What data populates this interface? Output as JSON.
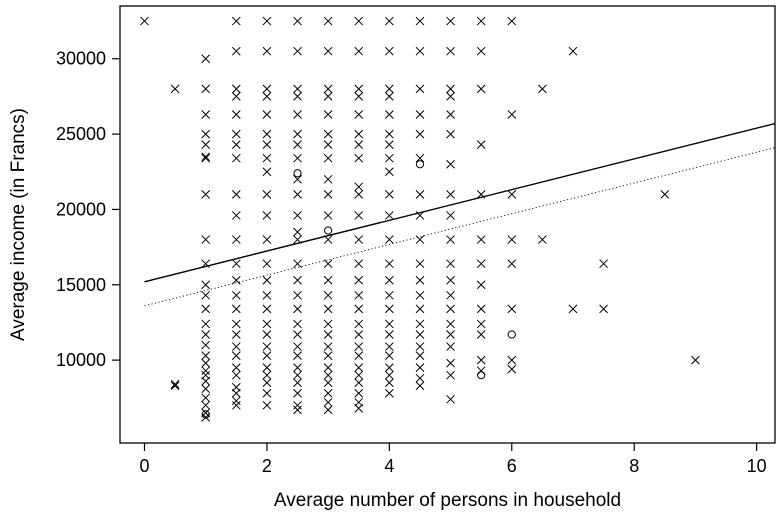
{
  "chart_data": {
    "type": "scatter",
    "title": "",
    "xlabel": "Average number of persons in household",
    "ylabel": "Average income (in Francs)",
    "xlim": [
      -0.4,
      10.3
    ],
    "ylim": [
      4500,
      33500
    ],
    "xticks": [
      0,
      2,
      4,
      6,
      8,
      10
    ],
    "yticks": [
      10000,
      15000,
      20000,
      25000,
      30000
    ],
    "grid": false,
    "legend": "none",
    "series": [
      {
        "marker": "cross",
        "points": [
          [
            0,
            32500
          ],
          [
            0.5,
            28000
          ],
          [
            0.5,
            8300
          ],
          [
            0.5,
            8400
          ],
          [
            1,
            30000
          ],
          [
            1,
            28000
          ],
          [
            1,
            26300
          ],
          [
            1,
            25000
          ],
          [
            1,
            24300
          ],
          [
            1,
            23500
          ],
          [
            1,
            23400
          ],
          [
            1,
            21000
          ],
          [
            1,
            18000
          ],
          [
            1,
            16400
          ],
          [
            1,
            15000
          ],
          [
            1,
            14300
          ],
          [
            1,
            13400
          ],
          [
            1,
            12400
          ],
          [
            1,
            11700
          ],
          [
            1,
            11000
          ],
          [
            1,
            10300
          ],
          [
            1,
            9800
          ],
          [
            1,
            9300
          ],
          [
            1,
            9000
          ],
          [
            1,
            8600
          ],
          [
            1,
            8100
          ],
          [
            1,
            7500
          ],
          [
            1,
            7000
          ],
          [
            1,
            6500
          ],
          [
            1,
            6200
          ],
          [
            1.5,
            32500
          ],
          [
            1.5,
            30500
          ],
          [
            1.5,
            28000
          ],
          [
            1.5,
            27500
          ],
          [
            1.5,
            26300
          ],
          [
            1.5,
            25000
          ],
          [
            1.5,
            24300
          ],
          [
            1.5,
            23400
          ],
          [
            1.5,
            21000
          ],
          [
            1.5,
            19600
          ],
          [
            1.5,
            18000
          ],
          [
            1.5,
            16400
          ],
          [
            1.5,
            15300
          ],
          [
            1.5,
            14300
          ],
          [
            1.5,
            13400
          ],
          [
            1.5,
            12400
          ],
          [
            1.5,
            11700
          ],
          [
            1.5,
            10900
          ],
          [
            1.5,
            10300
          ],
          [
            1.5,
            9500
          ],
          [
            1.5,
            9000
          ],
          [
            1.5,
            8200
          ],
          [
            1.5,
            7800
          ],
          [
            1.5,
            7300
          ],
          [
            1.5,
            7000
          ],
          [
            2,
            32500
          ],
          [
            2,
            30500
          ],
          [
            2,
            28000
          ],
          [
            2,
            27500
          ],
          [
            2,
            26300
          ],
          [
            2,
            25000
          ],
          [
            2,
            24300
          ],
          [
            2,
            23400
          ],
          [
            2,
            22500
          ],
          [
            2,
            21000
          ],
          [
            2,
            19600
          ],
          [
            2,
            18000
          ],
          [
            2,
            16400
          ],
          [
            2,
            15300
          ],
          [
            2,
            14300
          ],
          [
            2,
            13400
          ],
          [
            2,
            12400
          ],
          [
            2,
            11700
          ],
          [
            2,
            10900
          ],
          [
            2,
            10300
          ],
          [
            2,
            9500
          ],
          [
            2,
            9000
          ],
          [
            2,
            8500
          ],
          [
            2,
            7800
          ],
          [
            2,
            7000
          ],
          [
            2.5,
            32500
          ],
          [
            2.5,
            30500
          ],
          [
            2.5,
            28000
          ],
          [
            2.5,
            27500
          ],
          [
            2.5,
            26300
          ],
          [
            2.5,
            25000
          ],
          [
            2.5,
            24300
          ],
          [
            2.5,
            23400
          ],
          [
            2.5,
            22000
          ],
          [
            2.5,
            21000
          ],
          [
            2.5,
            19600
          ],
          [
            2.5,
            18500
          ],
          [
            2.5,
            18000
          ],
          [
            2.5,
            16400
          ],
          [
            2.5,
            15300
          ],
          [
            2.5,
            14300
          ],
          [
            2.5,
            13400
          ],
          [
            2.5,
            12400
          ],
          [
            2.5,
            11700
          ],
          [
            2.5,
            10900
          ],
          [
            2.5,
            10300
          ],
          [
            2.5,
            9500
          ],
          [
            2.5,
            9000
          ],
          [
            2.5,
            8500
          ],
          [
            2.5,
            7800
          ],
          [
            2.5,
            7000
          ],
          [
            2.5,
            6700
          ],
          [
            3,
            32500
          ],
          [
            3,
            30500
          ],
          [
            3,
            28000
          ],
          [
            3,
            27500
          ],
          [
            3,
            26300
          ],
          [
            3,
            25000
          ],
          [
            3,
            24300
          ],
          [
            3,
            23400
          ],
          [
            3,
            22000
          ],
          [
            3,
            21000
          ],
          [
            3,
            19600
          ],
          [
            3,
            18000
          ],
          [
            3,
            16400
          ],
          [
            3,
            15300
          ],
          [
            3,
            14300
          ],
          [
            3,
            13400
          ],
          [
            3,
            12400
          ],
          [
            3,
            11700
          ],
          [
            3,
            10900
          ],
          [
            3,
            10300
          ],
          [
            3,
            9500
          ],
          [
            3,
            9000
          ],
          [
            3,
            8500
          ],
          [
            3,
            7800
          ],
          [
            3,
            7200
          ],
          [
            3,
            6700
          ],
          [
            3.5,
            32500
          ],
          [
            3.5,
            30500
          ],
          [
            3.5,
            28000
          ],
          [
            3.5,
            27500
          ],
          [
            3.5,
            26300
          ],
          [
            3.5,
            25000
          ],
          [
            3.5,
            24300
          ],
          [
            3.5,
            23400
          ],
          [
            3.5,
            21500
          ],
          [
            3.5,
            21000
          ],
          [
            3.5,
            19600
          ],
          [
            3.5,
            18000
          ],
          [
            3.5,
            16400
          ],
          [
            3.5,
            15300
          ],
          [
            3.5,
            14300
          ],
          [
            3.5,
            13400
          ],
          [
            3.5,
            12400
          ],
          [
            3.5,
            11700
          ],
          [
            3.5,
            10900
          ],
          [
            3.5,
            10300
          ],
          [
            3.5,
            9500
          ],
          [
            3.5,
            9000
          ],
          [
            3.5,
            8500
          ],
          [
            3.5,
            7800
          ],
          [
            3.5,
            7200
          ],
          [
            3.5,
            6800
          ],
          [
            4,
            32500
          ],
          [
            4,
            30500
          ],
          [
            4,
            28000
          ],
          [
            4,
            27500
          ],
          [
            4,
            26300
          ],
          [
            4,
            25000
          ],
          [
            4,
            24300
          ],
          [
            4,
            23400
          ],
          [
            4,
            22500
          ],
          [
            4,
            21000
          ],
          [
            4,
            19600
          ],
          [
            4,
            18000
          ],
          [
            4,
            16400
          ],
          [
            4,
            15300
          ],
          [
            4,
            14300
          ],
          [
            4,
            13400
          ],
          [
            4,
            12400
          ],
          [
            4,
            11700
          ],
          [
            4,
            10900
          ],
          [
            4,
            10300
          ],
          [
            4,
            9500
          ],
          [
            4,
            9000
          ],
          [
            4,
            8500
          ],
          [
            4,
            7800
          ],
          [
            4.5,
            32500
          ],
          [
            4.5,
            30500
          ],
          [
            4.5,
            28000
          ],
          [
            4.5,
            26300
          ],
          [
            4.5,
            25000
          ],
          [
            4.5,
            23400
          ],
          [
            4.5,
            21000
          ],
          [
            4.5,
            19600
          ],
          [
            4.5,
            18000
          ],
          [
            4.5,
            16400
          ],
          [
            4.5,
            15300
          ],
          [
            4.5,
            14300
          ],
          [
            4.5,
            13400
          ],
          [
            4.5,
            12400
          ],
          [
            4.5,
            11700
          ],
          [
            4.5,
            10900
          ],
          [
            4.5,
            10300
          ],
          [
            4.5,
            9500
          ],
          [
            4.5,
            8800
          ],
          [
            4.5,
            8300
          ],
          [
            5,
            32500
          ],
          [
            5,
            30500
          ],
          [
            5,
            28000
          ],
          [
            5,
            27500
          ],
          [
            5,
            26300
          ],
          [
            5,
            25000
          ],
          [
            5,
            23000
          ],
          [
            5,
            21000
          ],
          [
            5,
            19600
          ],
          [
            5,
            18000
          ],
          [
            5,
            16400
          ],
          [
            5,
            15300
          ],
          [
            5,
            14300
          ],
          [
            5,
            13400
          ],
          [
            5,
            12400
          ],
          [
            5,
            11700
          ],
          [
            5,
            10900
          ],
          [
            5,
            9800
          ],
          [
            5,
            9000
          ],
          [
            5,
            7400
          ],
          [
            5.5,
            32500
          ],
          [
            5.5,
            30500
          ],
          [
            5.5,
            28000
          ],
          [
            5.5,
            24300
          ],
          [
            5.5,
            21000
          ],
          [
            5.5,
            18000
          ],
          [
            5.5,
            16400
          ],
          [
            5.5,
            15000
          ],
          [
            5.5,
            13400
          ],
          [
            5.5,
            12400
          ],
          [
            5.5,
            11700
          ],
          [
            5.5,
            10000
          ],
          [
            5.5,
            9300
          ],
          [
            6,
            32500
          ],
          [
            6,
            26300
          ],
          [
            6,
            21000
          ],
          [
            6,
            18000
          ],
          [
            6,
            16400
          ],
          [
            6,
            13400
          ],
          [
            6,
            10000
          ],
          [
            6,
            9400
          ],
          [
            6.5,
            28000
          ],
          [
            6.5,
            18000
          ],
          [
            7,
            30500
          ],
          [
            7,
            13400
          ],
          [
            7.5,
            16400
          ],
          [
            7.5,
            13400
          ],
          [
            8.5,
            21000
          ],
          [
            9,
            10000
          ]
        ]
      },
      {
        "marker": "circle",
        "points": [
          [
            1,
            6400
          ],
          [
            2.5,
            22400
          ],
          [
            3,
            18600
          ],
          [
            4.5,
            23000
          ],
          [
            5.5,
            9000
          ],
          [
            6,
            11700
          ]
        ]
      }
    ],
    "lines": [
      {
        "style": "solid",
        "x": [
          0,
          10.3
        ],
        "y": [
          15200,
          25700
        ]
      },
      {
        "style": "dotted",
        "x": [
          0,
          10.3
        ],
        "y": [
          13600,
          24100
        ]
      }
    ]
  }
}
